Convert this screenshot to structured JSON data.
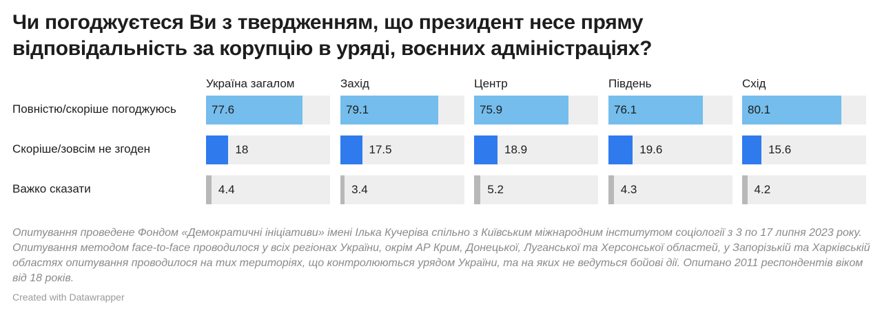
{
  "title_lines": [
    "Чи погоджуєтеся Ви з твердженням, що президент несе пряму",
    "відповідальність за корупцію в уряді, воєнних адміністраціях?"
  ],
  "note": "Опитування проведене Фондом «Демократичні ініціативи» імені Ілька Кучеріва спільно з Київським міжнародним інститутом соціології з 3 по 17 липня 2023 року. Опитування методом face-to-face проводилося у всіх регіонах України, окрім АР Крим, Донецької, Луганської та Херсонської областей, у Запорізькій та Харківській областях опитування проводилося на тих територіях, що контролюються урядом України, та на яких не ведуться бойові дії. Опитано 2011 респондентів віком від 18 років.",
  "credit": "Created with Datawrapper",
  "chart_data": {
    "type": "bar",
    "columns": [
      "Україна загалом",
      "Захід",
      "Центр",
      "Південь",
      "Схід"
    ],
    "scale_max": 100,
    "series": [
      {
        "name": "Повністю/скоріше погоджуюсь",
        "color": "#74bdec",
        "values": [
          77.6,
          79.1,
          75.9,
          76.1,
          80.1
        ]
      },
      {
        "name": "Скоріше/зовсім не згоден",
        "color": "#2f7bed",
        "values": [
          18,
          17.5,
          18.9,
          19.6,
          15.6
        ]
      },
      {
        "name": "Важко сказати",
        "color": "#b8b8b8",
        "values": [
          4.4,
          3.4,
          5.2,
          4.3,
          4.2
        ]
      }
    ]
  }
}
